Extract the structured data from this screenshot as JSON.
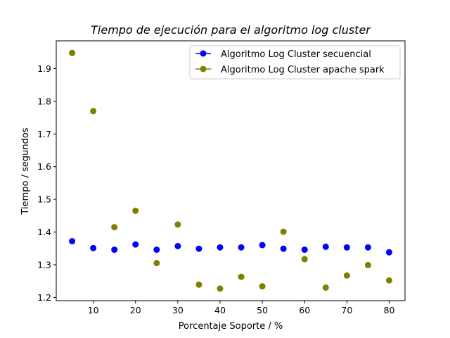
{
  "chart_data": {
    "type": "scatter",
    "title": "Tiempo de ejecución para el algoritmo log cluster",
    "xlabel": "Porcentaje Soporte / %",
    "ylabel": "Tiempo / segundos",
    "xlim": [
      1.25,
      83.75
    ],
    "ylim": [
      1.19,
      1.985
    ],
    "xticks": [
      10,
      20,
      30,
      40,
      50,
      60,
      70,
      80
    ],
    "yticks": [
      1.2,
      1.3,
      1.4,
      1.5,
      1.6,
      1.7,
      1.8,
      1.9
    ],
    "xtick_labels": [
      "10",
      "20",
      "30",
      "40",
      "50",
      "60",
      "70",
      "80"
    ],
    "ytick_labels": [
      "1.2",
      "1.3",
      "1.4",
      "1.5",
      "1.6",
      "1.7",
      "1.8",
      "1.9"
    ],
    "legend_position": "top-right",
    "series": [
      {
        "name": "Algoritmo Log Cluster secuencial",
        "color": "#0000ff",
        "x": [
          5,
          10,
          15,
          20,
          25,
          30,
          35,
          40,
          45,
          50,
          55,
          60,
          65,
          70,
          75,
          80
        ],
        "values": [
          1.372,
          1.351,
          1.346,
          1.362,
          1.346,
          1.357,
          1.349,
          1.353,
          1.353,
          1.36,
          1.349,
          1.346,
          1.355,
          1.353,
          1.353,
          1.338
        ]
      },
      {
        "name": "Algoritmo Log Cluster apache spark",
        "color": "#808000",
        "x": [
          5,
          10,
          15,
          20,
          25,
          30,
          35,
          40,
          45,
          50,
          55,
          60,
          65,
          70,
          75,
          80
        ],
        "values": [
          1.948,
          1.77,
          1.415,
          1.465,
          1.305,
          1.423,
          1.239,
          1.227,
          1.263,
          1.234,
          1.401,
          1.317,
          1.23,
          1.267,
          1.299,
          1.252
        ]
      }
    ]
  }
}
